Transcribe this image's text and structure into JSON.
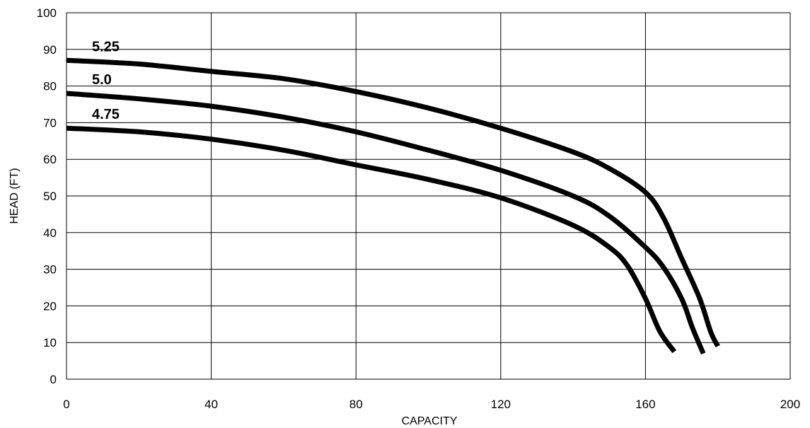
{
  "chart_data": {
    "type": "line",
    "title": "",
    "xlabel": "CAPACITY",
    "ylabel": "HEAD (FT)",
    "xlim": [
      0,
      200
    ],
    "ylim": [
      0,
      100
    ],
    "x_ticks": [
      0,
      40,
      80,
      120,
      160,
      200
    ],
    "y_ticks": [
      0,
      10,
      20,
      30,
      40,
      50,
      60,
      70,
      80,
      90,
      100
    ],
    "grid": true,
    "legend": "none",
    "line_color": "#000000",
    "series": [
      {
        "name": "5.25",
        "points": [
          [
            0,
            87
          ],
          [
            20,
            86
          ],
          [
            40,
            84
          ],
          [
            60,
            82
          ],
          [
            80,
            78.5
          ],
          [
            100,
            74
          ],
          [
            120,
            68.5
          ],
          [
            140,
            62
          ],
          [
            150,
            57.5
          ],
          [
            160,
            51
          ],
          [
            165,
            44
          ],
          [
            170,
            33
          ],
          [
            175,
            22
          ],
          [
            178,
            13
          ],
          [
            180,
            9
          ]
        ]
      },
      {
        "name": "5.0",
        "points": [
          [
            0,
            78
          ],
          [
            20,
            76.5
          ],
          [
            40,
            74.5
          ],
          [
            60,
            71.5
          ],
          [
            80,
            67.5
          ],
          [
            100,
            62.5
          ],
          [
            120,
            57
          ],
          [
            140,
            50
          ],
          [
            150,
            44.5
          ],
          [
            160,
            36
          ],
          [
            165,
            30.5
          ],
          [
            170,
            22
          ],
          [
            173,
            14
          ],
          [
            176,
            7
          ]
        ]
      },
      {
        "name": "4.75",
        "points": [
          [
            0,
            68.5
          ],
          [
            20,
            67.5
          ],
          [
            40,
            65.5
          ],
          [
            60,
            62.5
          ],
          [
            80,
            58.5
          ],
          [
            100,
            54.5
          ],
          [
            120,
            49.5
          ],
          [
            140,
            42
          ],
          [
            150,
            36
          ],
          [
            155,
            31
          ],
          [
            160,
            22
          ],
          [
            164,
            13
          ],
          [
            168,
            7.5
          ]
        ]
      }
    ]
  }
}
